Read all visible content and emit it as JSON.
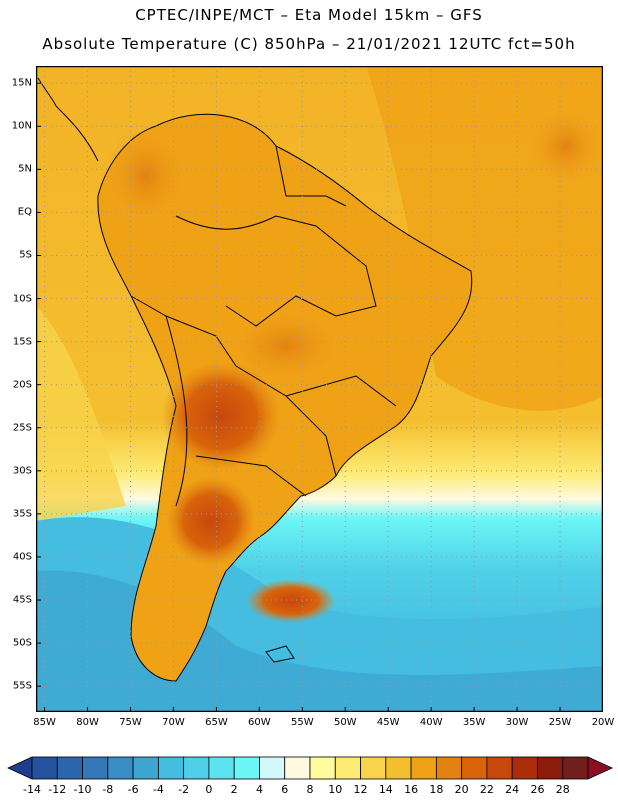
{
  "header": {
    "line1": "CPTEC/INPE/MCT –  Eta Model 15km – GFS",
    "line2": "Absolute Temperature (C) 850hPa – 21/01/2021 12UTC fct=50h"
  },
  "map": {
    "projection": "lat-lon",
    "lon_range": [
      -86,
      -20
    ],
    "lat_range": [
      -58,
      17
    ],
    "lat_ticks": [
      {
        "value": 15,
        "label": "15N"
      },
      {
        "value": 10,
        "label": "10N"
      },
      {
        "value": 5,
        "label": "5N"
      },
      {
        "value": 0,
        "label": "EQ"
      },
      {
        "value": -5,
        "label": "5S"
      },
      {
        "value": -10,
        "label": "10S"
      },
      {
        "value": -15,
        "label": "15S"
      },
      {
        "value": -20,
        "label": "20S"
      },
      {
        "value": -25,
        "label": "25S"
      },
      {
        "value": -30,
        "label": "30S"
      },
      {
        "value": -35,
        "label": "35S"
      },
      {
        "value": -40,
        "label": "40S"
      },
      {
        "value": -45,
        "label": "45S"
      },
      {
        "value": -50,
        "label": "50S"
      },
      {
        "value": -55,
        "label": "55S"
      }
    ],
    "lon_ticks": [
      {
        "value": -85,
        "label": "85W"
      },
      {
        "value": -80,
        "label": "80W"
      },
      {
        "value": -75,
        "label": "75W"
      },
      {
        "value": -70,
        "label": "70W"
      },
      {
        "value": -65,
        "label": "65W"
      },
      {
        "value": -60,
        "label": "60W"
      },
      {
        "value": -55,
        "label": "55W"
      },
      {
        "value": -50,
        "label": "50W"
      },
      {
        "value": -45,
        "label": "45W"
      },
      {
        "value": -40,
        "label": "40W"
      },
      {
        "value": -35,
        "label": "35W"
      },
      {
        "value": -30,
        "label": "30W"
      },
      {
        "value": -25,
        "label": "25W"
      },
      {
        "value": -20,
        "label": "20W"
      }
    ]
  },
  "colorbar": {
    "labels": [
      "-14",
      "-12",
      "-10",
      "-8",
      "-6",
      "-4",
      "-2",
      "0",
      "2",
      "4",
      "6",
      "8",
      "10",
      "12",
      "14",
      "16",
      "18",
      "20",
      "22",
      "24",
      "26",
      "28"
    ],
    "colors": [
      "#1f3d8f",
      "#24529f",
      "#2c66ad",
      "#3478b8",
      "#3b8ec5",
      "#3fa6d2",
      "#44bde0",
      "#4fd0e8",
      "#5ee2ef",
      "#6cf6f6",
      "#d3f8fb",
      "#fff9e1",
      "#fffb9f",
      "#fdeb73",
      "#f8d34b",
      "#f4bf2f",
      "#f0a216",
      "#e28211",
      "#d8630b",
      "#c7470c",
      "#ac2d0b",
      "#8b1c0c",
      "#711f1d",
      "#8b0e22"
    ]
  },
  "colors": {
    "ocean_warm": "#f0a216",
    "ocean_cool": "#44bde0",
    "land_hot": "#d8630b",
    "outline": "#000000",
    "grid": "#999999"
  }
}
